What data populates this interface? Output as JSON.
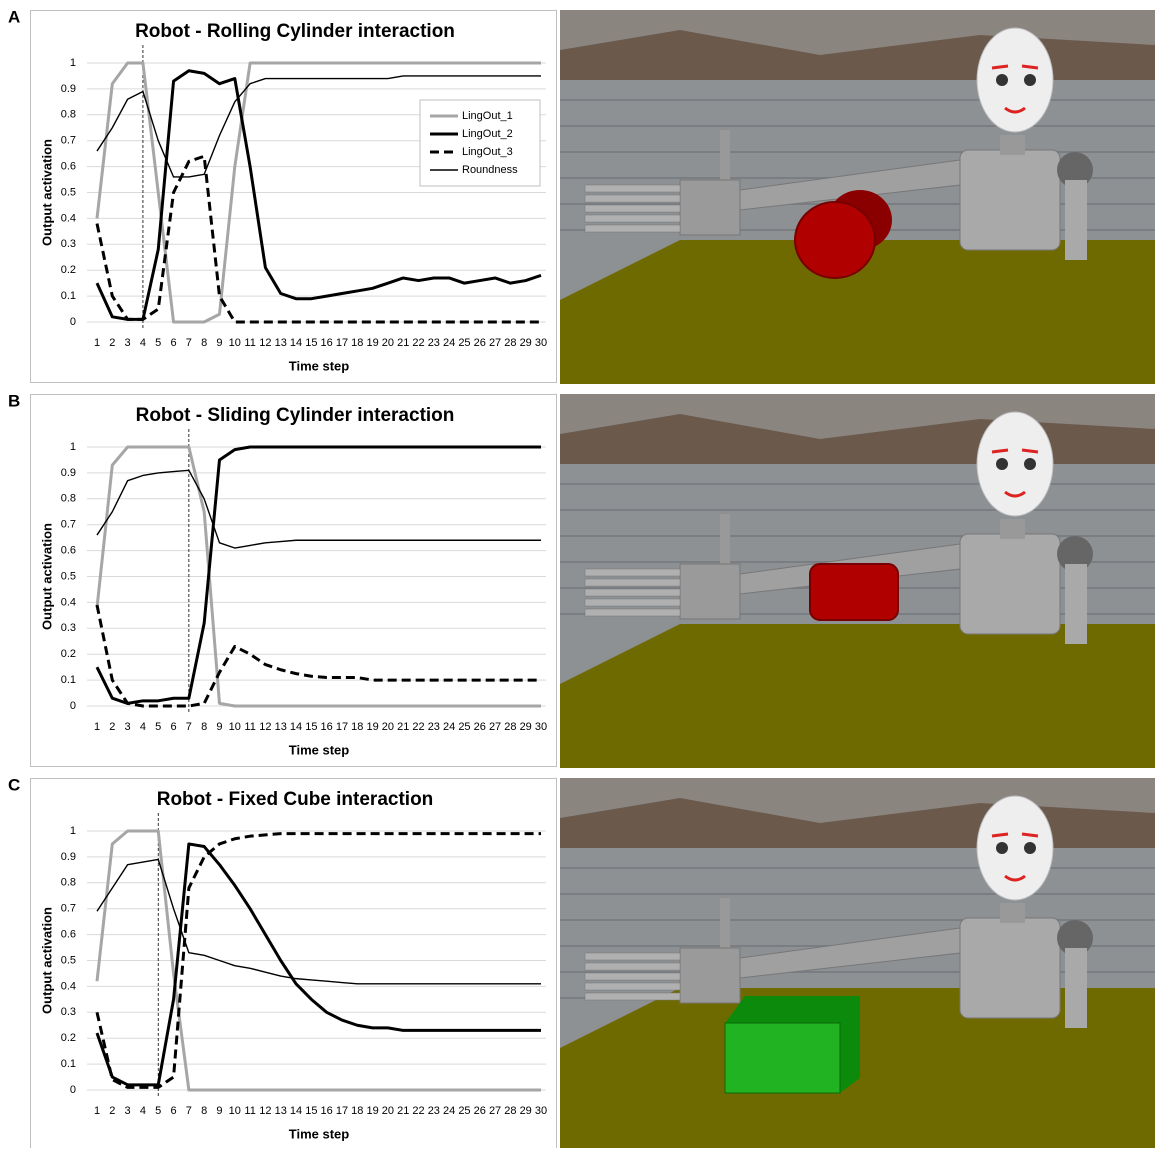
{
  "chart_data": [
    {
      "type": "line",
      "panel": "A",
      "title": "Robot - Rolling Cylinder interaction",
      "xlabel": "Time step",
      "ylabel": "Output activation",
      "categories": [
        "1",
        "2",
        "3",
        "4",
        "5",
        "6",
        "7",
        "8",
        "9",
        "10",
        "11",
        "12",
        "13",
        "14",
        "15",
        "16",
        "17",
        "18",
        "19",
        "20",
        "21",
        "22",
        "23",
        "24",
        "25",
        "26",
        "27",
        "28",
        "29",
        "30"
      ],
      "ylim": [
        0,
        1
      ],
      "yticks": [
        0,
        0.1,
        0.2,
        0.3,
        0.4,
        0.5,
        0.6,
        0.7,
        0.8,
        0.9,
        1
      ],
      "grid": true,
      "legend": "upper right",
      "marker_x": "4",
      "series": [
        {
          "name": "LingOut_1",
          "color": "#a6a6a6",
          "style": "bold",
          "values": [
            0.4,
            0.92,
            1,
            1,
            0.5,
            0,
            0,
            0,
            0.03,
            0.6,
            1,
            1,
            1,
            1,
            1,
            1,
            1,
            1,
            1,
            1,
            1,
            1,
            1,
            1,
            1,
            1,
            1,
            1,
            1,
            1
          ]
        },
        {
          "name": "LingOut_2",
          "color": "#000000",
          "style": "bold",
          "values": [
            0.15,
            0.02,
            0.01,
            0.01,
            0.28,
            0.93,
            0.97,
            0.96,
            0.92,
            0.94,
            0.6,
            0.21,
            0.11,
            0.09,
            0.09,
            0.1,
            0.11,
            0.12,
            0.13,
            0.15,
            0.17,
            0.16,
            0.17,
            0.17,
            0.15,
            0.16,
            0.17,
            0.15,
            0.16,
            0.18
          ]
        },
        {
          "name": "LingOut_3",
          "color": "#000000",
          "style": "dashed",
          "values": [
            0.38,
            0.1,
            0.01,
            0.01,
            0.05,
            0.5,
            0.62,
            0.64,
            0.1,
            0,
            0,
            0,
            0,
            0,
            0,
            0,
            0,
            0,
            0,
            0,
            0,
            0,
            0,
            0,
            0,
            0,
            0,
            0,
            0,
            0
          ]
        },
        {
          "name": "Roundness",
          "color": "#000000",
          "style": "thin",
          "values": [
            0.66,
            0.75,
            0.86,
            0.89,
            0.7,
            0.56,
            0.56,
            0.57,
            0.72,
            0.85,
            0.92,
            0.94,
            0.94,
            0.94,
            0.94,
            0.94,
            0.94,
            0.94,
            0.94,
            0.94,
            0.95,
            0.95,
            0.95,
            0.95,
            0.95,
            0.95,
            0.95,
            0.95,
            0.95,
            0.95
          ]
        }
      ]
    },
    {
      "type": "line",
      "panel": "B",
      "title": "Robot - Sliding Cylinder interaction",
      "xlabel": "Time step",
      "ylabel": "Output activation",
      "categories": [
        "1",
        "2",
        "3",
        "4",
        "5",
        "6",
        "7",
        "8",
        "9",
        "10",
        "11",
        "12",
        "13",
        "14",
        "15",
        "16",
        "17",
        "18",
        "19",
        "20",
        "21",
        "22",
        "23",
        "24",
        "25",
        "26",
        "27",
        "28",
        "29",
        "30"
      ],
      "ylim": [
        0,
        1
      ],
      "yticks": [
        0,
        0.1,
        0.2,
        0.3,
        0.4,
        0.5,
        0.6,
        0.7,
        0.8,
        0.9,
        1
      ],
      "grid": true,
      "marker_x": "7",
      "series": [
        {
          "color": "#a6a6a6",
          "style": "bold",
          "values": [
            0.38,
            0.93,
            1,
            1,
            1,
            1,
            1,
            0.75,
            0.01,
            0,
            0,
            0,
            0,
            0,
            0,
            0,
            0,
            0,
            0,
            0,
            0,
            0,
            0,
            0,
            0,
            0,
            0,
            0,
            0,
            0
          ]
        },
        {
          "color": "#000000",
          "style": "bold",
          "values": [
            0.15,
            0.03,
            0.01,
            0.02,
            0.02,
            0.03,
            0.03,
            0.32,
            0.95,
            0.99,
            1,
            1,
            1,
            1,
            1,
            1,
            1,
            1,
            1,
            1,
            1,
            1,
            1,
            1,
            1,
            1,
            1,
            1,
            1,
            1
          ]
        },
        {
          "color": "#000000",
          "style": "dashed",
          "values": [
            0.39,
            0.1,
            0.01,
            0,
            0,
            0,
            0,
            0.01,
            0.13,
            0.23,
            0.2,
            0.16,
            0.14,
            0.125,
            0.115,
            0.11,
            0.11,
            0.11,
            0.1,
            0.1,
            0.1,
            0.1,
            0.1,
            0.1,
            0.1,
            0.1,
            0.1,
            0.1,
            0.1,
            0.1
          ]
        },
        {
          "color": "#000000",
          "style": "thin",
          "values": [
            0.66,
            0.75,
            0.87,
            0.89,
            0.9,
            0.905,
            0.91,
            0.8,
            0.63,
            0.61,
            0.62,
            0.63,
            0.635,
            0.64,
            0.64,
            0.64,
            0.64,
            0.64,
            0.64,
            0.64,
            0.64,
            0.64,
            0.64,
            0.64,
            0.64,
            0.64,
            0.64,
            0.64,
            0.64,
            0.64
          ]
        }
      ]
    },
    {
      "type": "line",
      "panel": "C",
      "title": "Robot - Fixed Cube interaction",
      "xlabel": "Time step",
      "ylabel": "Output activation",
      "categories": [
        "1",
        "2",
        "3",
        "4",
        "5",
        "6",
        "7",
        "8",
        "9",
        "10",
        "11",
        "12",
        "13",
        "14",
        "15",
        "16",
        "17",
        "18",
        "19",
        "20",
        "21",
        "22",
        "23",
        "24",
        "25",
        "26",
        "27",
        "28",
        "29",
        "30"
      ],
      "ylim": [
        0,
        1
      ],
      "yticks": [
        0,
        0.1,
        0.2,
        0.3,
        0.4,
        0.5,
        0.6,
        0.7,
        0.8,
        0.9,
        1
      ],
      "grid": true,
      "marker_x": "5",
      "series": [
        {
          "color": "#a6a6a6",
          "style": "bold",
          "values": [
            0.42,
            0.95,
            1,
            1,
            1,
            0.45,
            0,
            0,
            0,
            0,
            0,
            0,
            0,
            0,
            0,
            0,
            0,
            0,
            0,
            0,
            0,
            0,
            0,
            0,
            0,
            0,
            0,
            0,
            0,
            0
          ]
        },
        {
          "color": "#000000",
          "style": "bold",
          "values": [
            0.22,
            0.05,
            0.02,
            0.02,
            0.02,
            0.35,
            0.95,
            0.94,
            0.87,
            0.79,
            0.7,
            0.6,
            0.5,
            0.41,
            0.35,
            0.3,
            0.27,
            0.25,
            0.24,
            0.24,
            0.23,
            0.23,
            0.23,
            0.23,
            0.23,
            0.23,
            0.23,
            0.23,
            0.23,
            0.23
          ]
        },
        {
          "color": "#000000",
          "style": "dashed",
          "values": [
            0.3,
            0.04,
            0.01,
            0.01,
            0.01,
            0.05,
            0.78,
            0.9,
            0.95,
            0.97,
            0.98,
            0.985,
            0.99,
            0.99,
            0.99,
            0.99,
            0.99,
            0.99,
            0.99,
            0.99,
            0.99,
            0.99,
            0.99,
            0.99,
            0.99,
            0.99,
            0.99,
            0.99,
            0.99,
            0.99
          ]
        },
        {
          "color": "#000000",
          "style": "thin",
          "values": [
            0.69,
            0.78,
            0.87,
            0.88,
            0.89,
            0.7,
            0.53,
            0.52,
            0.5,
            0.48,
            0.47,
            0.455,
            0.44,
            0.43,
            0.425,
            0.42,
            0.415,
            0.41,
            0.41,
            0.41,
            0.41,
            0.41,
            0.41,
            0.41,
            0.41,
            0.41,
            0.41,
            0.41,
            0.41,
            0.41
          ]
        }
      ]
    }
  ]
}
